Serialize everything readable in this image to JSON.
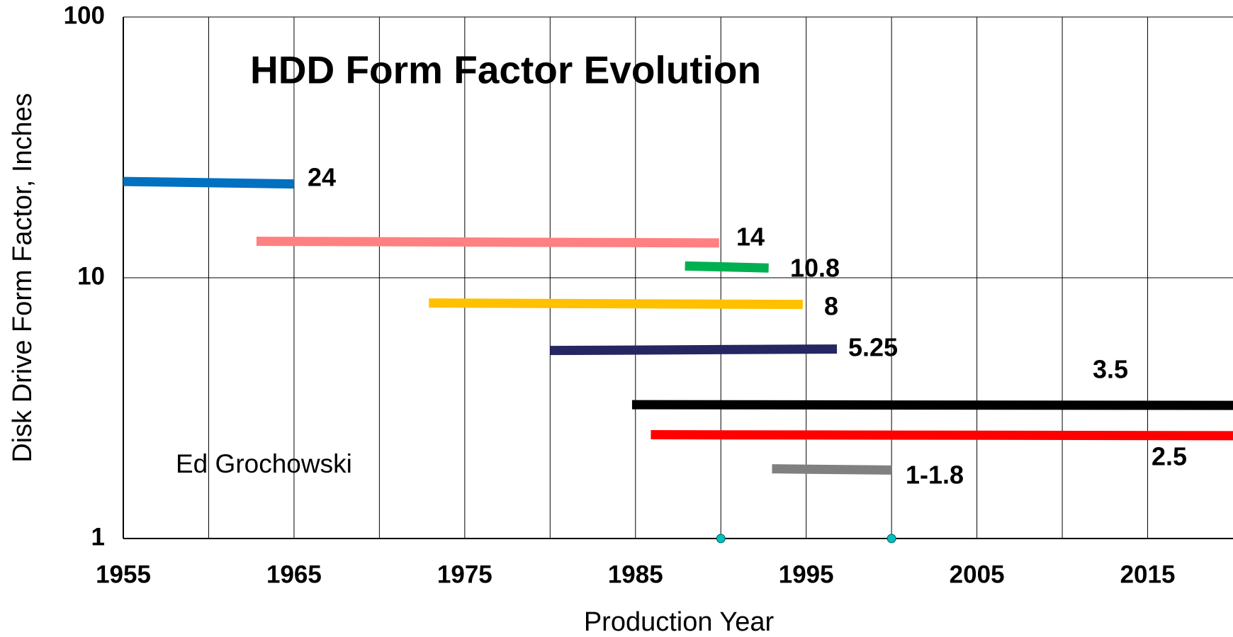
{
  "chart_data": {
    "type": "line",
    "title": "HDD Form Factor Evolution",
    "x_label": "Production Year",
    "y_label": "Disk Drive Form Factor, Inches",
    "annotation": "Ed Grochowski",
    "xlim": [
      1955,
      2020
    ],
    "xticks": [
      1955,
      1965,
      1975,
      1985,
      1995,
      2005,
      2015
    ],
    "ylim": [
      1,
      100
    ],
    "yticks": [
      1,
      10,
      100
    ],
    "y_scale": "log",
    "grid": true,
    "series": [
      {
        "name": "24",
        "color": "#0070c0",
        "x": [
          1955,
          1965
        ],
        "values": [
          23.4,
          22.9
        ]
      },
      {
        "name": "14",
        "color": "#ff8080",
        "x": [
          1962.8,
          1989.9
        ],
        "values": [
          13.8,
          13.6
        ]
      },
      {
        "name": "10.8",
        "color": "#00b050",
        "x": [
          1987.9,
          1992.8
        ],
        "values": [
          11.1,
          10.9
        ]
      },
      {
        "name": "8",
        "color": "#ffc000",
        "x": [
          1972.9,
          1994.8
        ],
        "values": [
          8.0,
          7.9
        ]
      },
      {
        "name": "5.25",
        "color": "#262663",
        "x": [
          1980,
          1996.8
        ],
        "values": [
          5.26,
          5.33
        ]
      },
      {
        "name": "3.5",
        "color": "#000000",
        "x": [
          1984.8,
          2020
        ],
        "values": [
          3.26,
          3.24
        ]
      },
      {
        "name": "2.5",
        "color": "#ff0000",
        "x": [
          1985.9,
          2020
        ],
        "values": [
          2.5,
          2.48
        ]
      },
      {
        "name": "1-1.8",
        "color": "#808080",
        "x": [
          1993,
          2000
        ],
        "values": [
          1.85,
          1.83
        ]
      }
    ],
    "markers": {
      "color": "#00c0c0",
      "x": [
        1990,
        2000
      ],
      "values": [
        1,
        1
      ]
    }
  }
}
